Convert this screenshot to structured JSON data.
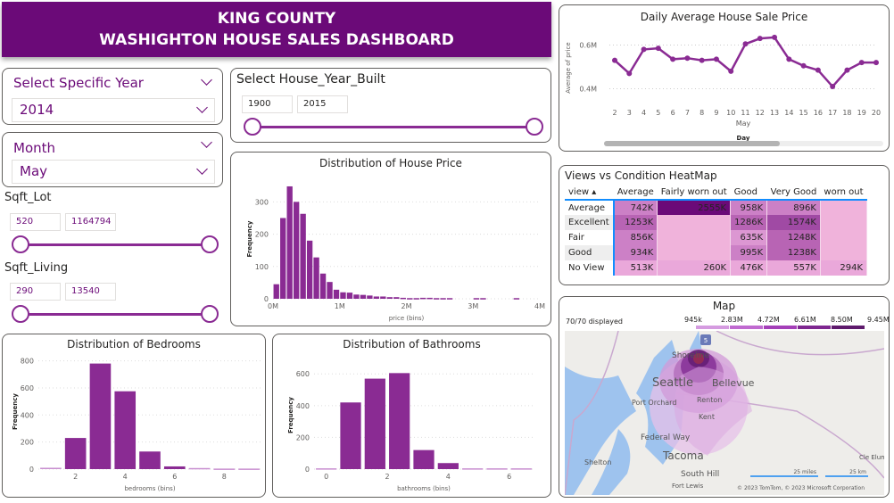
{
  "banner": {
    "line1": "KING COUNTY",
    "line2": "WASHIGHTON HOUSE SALES  DASHBOARD"
  },
  "year_slicer": {
    "title": "Select Specific Year",
    "value": "2014"
  },
  "month_slicer": {
    "title": "Month",
    "value": "May"
  },
  "sqft_lot": {
    "label": "Sqft_Lot",
    "min": "520",
    "max": "1164794"
  },
  "sqft_living": {
    "label": "Sqft_Living",
    "min": "290",
    "max": "13540"
  },
  "year_built": {
    "label": "Select House_Year_Built",
    "min": "1900",
    "max": "2015"
  },
  "colors": {
    "accent": "#6b0a78",
    "bar": "#8a2b93",
    "line": "#8a2b93"
  },
  "chart_data": [
    {
      "id": "price",
      "type": "bar",
      "title": "Distribution of House Price",
      "xlabel": "price (bins)",
      "ylabel": "Frequency",
      "xlim": [
        0,
        4000000
      ],
      "ylim": [
        0,
        370
      ],
      "xticks": [
        0,
        1000000,
        2000000,
        3000000,
        4000000
      ],
      "xtick_labels": [
        "0M",
        "1M",
        "2M",
        "3M",
        "4M"
      ],
      "yticks": [
        0,
        100,
        200,
        300
      ],
      "bin_width": 100000,
      "x": [
        50000,
        150000,
        250000,
        350000,
        450000,
        550000,
        650000,
        750000,
        850000,
        950000,
        1050000,
        1150000,
        1250000,
        1350000,
        1450000,
        1550000,
        1650000,
        1750000,
        1850000,
        1950000,
        2050000,
        2150000,
        2250000,
        2350000,
        2450000,
        2550000,
        2650000,
        3050000,
        3150000,
        3650000
      ],
      "values": [
        45,
        250,
        348,
        300,
        263,
        180,
        128,
        78,
        52,
        28,
        20,
        19,
        13,
        12,
        10,
        7,
        7,
        5,
        5,
        3,
        2,
        2,
        3,
        3,
        2,
        2,
        2,
        2,
        2,
        2
      ]
    },
    {
      "id": "bedrooms",
      "type": "bar",
      "title": "Distribution of Bedrooms",
      "xlabel": "bedrooms (bins)",
      "ylabel": "Frequency",
      "xlim": [
        0.5,
        9.5
      ],
      "ylim": [
        0,
        850
      ],
      "xticks": [
        2,
        4,
        6,
        8
      ],
      "xtick_labels": [
        "2",
        "4",
        "6",
        "8"
      ],
      "yticks": [
        0,
        200,
        400,
        600,
        800
      ],
      "bin_width": 1,
      "x": [
        1,
        2,
        3,
        4,
        5,
        6,
        7,
        8,
        9
      ],
      "values": [
        10,
        230,
        780,
        575,
        130,
        20,
        8,
        4,
        4
      ]
    },
    {
      "id": "bathrooms",
      "type": "bar",
      "title": "Distribution of Bathrooms",
      "xlabel": "bathrooms (bins)",
      "ylabel": "Frequency",
      "xlim": [
        -0.4,
        6.8
      ],
      "ylim": [
        0,
        680
      ],
      "xticks": [
        0,
        2,
        4,
        6
      ],
      "xtick_labels": [
        "0",
        "2",
        "4",
        "6"
      ],
      "yticks": [
        0,
        200,
        400,
        600
      ],
      "bin_width": 0.8,
      "x": [
        0,
        0.8,
        1.6,
        2.4,
        3.2,
        4.0,
        4.8,
        5.6,
        6.4
      ],
      "values": [
        5,
        420,
        570,
        605,
        120,
        38,
        5,
        5,
        5
      ]
    },
    {
      "id": "daily",
      "type": "line",
      "title": "Daily Average House Sale Price",
      "xlabel": "Day",
      "xsublabel": "May",
      "ylabel": "Average of price",
      "ylim": [
        300000,
        700000
      ],
      "yticks": [
        400000,
        600000
      ],
      "ytick_labels": [
        "0.4M",
        "0.6M"
      ],
      "x": [
        2,
        3,
        4,
        5,
        6,
        7,
        8,
        9,
        10,
        11,
        12,
        13,
        14,
        15,
        16,
        17,
        18,
        19,
        20
      ],
      "values": [
        530000,
        470000,
        580000,
        585000,
        535000,
        540000,
        530000,
        535000,
        480000,
        605000,
        630000,
        635000,
        535000,
        505000,
        485000,
        410000,
        485000,
        520000,
        520000
      ]
    }
  ],
  "heatmap": {
    "title": "Views vs Condition HeatMap",
    "row_header": "view",
    "columns": [
      "Average",
      "Fairly worn out",
      "Good",
      "Very Good",
      "worn out"
    ],
    "rows": [
      {
        "name": "Average",
        "cells": [
          "742K",
          "2555K",
          "958K",
          "896K",
          ""
        ],
        "values": [
          742,
          2555,
          958,
          896,
          null
        ]
      },
      {
        "name": "Excellent",
        "cells": [
          "1253K",
          "",
          "1286K",
          "1574K",
          ""
        ],
        "values": [
          1253,
          null,
          1286,
          1574,
          null
        ]
      },
      {
        "name": "Fair",
        "cells": [
          "856K",
          "",
          "635K",
          "1248K",
          ""
        ],
        "values": [
          856,
          null,
          635,
          1248,
          null
        ]
      },
      {
        "name": "Good",
        "cells": [
          "934K",
          "",
          "995K",
          "1238K",
          ""
        ],
        "values": [
          934,
          null,
          995,
          1238,
          null
        ]
      },
      {
        "name": "No View",
        "cells": [
          "513K",
          "260K",
          "476K",
          "557K",
          "294K"
        ],
        "values": [
          513,
          260,
          476,
          557,
          294
        ]
      }
    ]
  },
  "map": {
    "title": "Map",
    "displayed": "70/70 displayed",
    "legend": [
      "945k",
      "2.83M",
      "4.72M",
      "6.61M",
      "8.50M",
      "9.45M"
    ],
    "legend_colors": [
      "#d59be0",
      "#c06ad0",
      "#a43fb8",
      "#7e2790",
      "#5e1a6c"
    ],
    "places": [
      "Shoreline",
      "Seattle",
      "Bellevue",
      "Port Orchard",
      "Renton",
      "Kent",
      "Federal Way",
      "Tacoma",
      "South Hill",
      "Shelton",
      "Fort Lewis",
      "Cle Elum"
    ],
    "scale_miles": "25 miles",
    "scale_km": "25 km",
    "copyright": "© 2023 TomTom, © 2023 Microsoft Corporation",
    "highway": "5"
  }
}
